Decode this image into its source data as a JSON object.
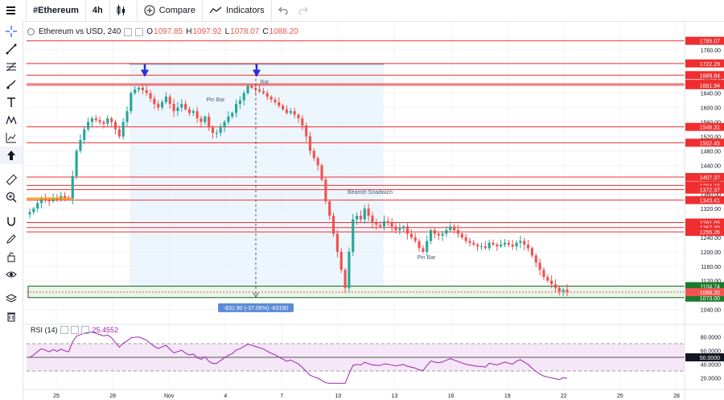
{
  "topbar": {
    "symbol": "#Ethereum",
    "interval": "4h",
    "compare_label": "Compare",
    "indicators_label": "Indicators"
  },
  "legend": {
    "title": "Ethereum vs USD, 240",
    "open_label": "O",
    "open": "1097.85",
    "high_label": "H",
    "high": "1097.92",
    "low_label": "L",
    "low": "1078.07",
    "close_label": "C",
    "close": "1088.20"
  },
  "rsi_legend": {
    "name": "RSI (14)",
    "value": "25.4552"
  },
  "colors": {
    "up": "#26a69a",
    "down": "#ef5350",
    "level": "#ef2f2f",
    "rsi": "#9c27b0",
    "zone": "#4caf50",
    "arrow": "#2a2bd8"
  },
  "chart_data": {
    "type": "candlestick",
    "price_axis": {
      "min": 1010,
      "max": 1800,
      "ticks": [
        "1760.00",
        "1720.00",
        "1680.00",
        "1640.00",
        "1600.00",
        "1560.00",
        "1520.00",
        "1480.00",
        "1440.00",
        "1400.00",
        "1360.00",
        "1320.00",
        "1280.00",
        "1240.00",
        "1200.00",
        "1160.00",
        "1120.00",
        "1080.00",
        "1040.00"
      ]
    },
    "x_axis": {
      "ticks": [
        "25",
        "28",
        "Nov",
        "4",
        "7",
        "10",
        "13",
        "16",
        "19",
        "22",
        "25",
        "28"
      ]
    },
    "price_levels": [
      {
        "value": 1785.07,
        "label": "1785.07"
      },
      {
        "value": 1722.29,
        "label": "1722.29"
      },
      {
        "value": 1689.84,
        "label": "1689.84"
      },
      {
        "value": 1665.84,
        "label": "1665.84"
      },
      {
        "value": 1661.94,
        "label": "1661.94"
      },
      {
        "value": 1546.31,
        "label": "1546.31"
      },
      {
        "value": 1502.45,
        "label": "1502.45"
      },
      {
        "value": 1407.37,
        "label": "1407.37"
      },
      {
        "value": 1384.16,
        "label": "1384.16"
      },
      {
        "value": 1372.37,
        "label": "1372.37"
      },
      {
        "value": 1343.41,
        "label": "1343.41"
      },
      {
        "value": 1281.05,
        "label": "1281.05"
      },
      {
        "value": 1267.3,
        "label": "1267.30"
      },
      {
        "value": 1255.26,
        "label": "1255.26"
      }
    ],
    "green_levels": [
      {
        "value": 1104.74,
        "label": "1104.74"
      },
      {
        "value": 1073.0,
        "label": "1073.00"
      }
    ],
    "last_price": {
      "value": 1088.2,
      "label": "1088.20"
    },
    "annotations": [
      {
        "text": "Pin Bar",
        "price": 1617,
        "date": 3.1
      },
      {
        "text": "Bar",
        "price": 1666,
        "date": 5.5
      },
      {
        "text": "Bearish Snadwich",
        "price": 1360,
        "date": 10.0
      },
      {
        "text": "Pin Bar",
        "price": 1180,
        "date": 14.2
      }
    ],
    "measure_label": "-631.90 (-37.06%) -63190",
    "closes": [
      1310,
      1320,
      1335,
      1350,
      1345,
      1340,
      1350,
      1345,
      1355,
      1350,
      1347,
      1410,
      1480,
      1510,
      1540,
      1560,
      1570,
      1565,
      1560,
      1555,
      1570,
      1560,
      1540,
      1520,
      1560,
      1590,
      1640,
      1650,
      1655,
      1648,
      1640,
      1625,
      1610,
      1600,
      1615,
      1630,
      1610,
      1590,
      1600,
      1610,
      1595,
      1585,
      1590,
      1570,
      1560,
      1575,
      1545,
      1530,
      1530,
      1545,
      1560,
      1575,
      1585,
      1610,
      1620,
      1640,
      1660,
      1655,
      1650,
      1645,
      1640,
      1630,
      1622,
      1615,
      1605,
      1595,
      1585,
      1590,
      1580,
      1570,
      1550,
      1520,
      1480,
      1460,
      1440,
      1400,
      1340,
      1300,
      1250,
      1200,
      1150,
      1100,
      1200,
      1290,
      1300,
      1290,
      1320,
      1300,
      1280,
      1275,
      1270,
      1285,
      1280,
      1270,
      1260,
      1265,
      1270,
      1250,
      1240,
      1230,
      1210,
      1200,
      1230,
      1260,
      1250,
      1245,
      1250,
      1260,
      1270,
      1260,
      1250,
      1240,
      1230,
      1225,
      1220,
      1215,
      1215,
      1210,
      1225,
      1220,
      1215,
      1220,
      1225,
      1220,
      1215,
      1225,
      1230,
      1220,
      1210,
      1190,
      1170,
      1150,
      1130,
      1120,
      1110,
      1100,
      1090,
      1095,
      1088.2
    ],
    "rsi": {
      "min": 10,
      "max": 90,
      "ticks": [
        "80.0000",
        "60.0000",
        "40.0000",
        "20.0000"
      ],
      "value_label": "50.0000",
      "overbought": 70,
      "oversold": 30
    }
  }
}
